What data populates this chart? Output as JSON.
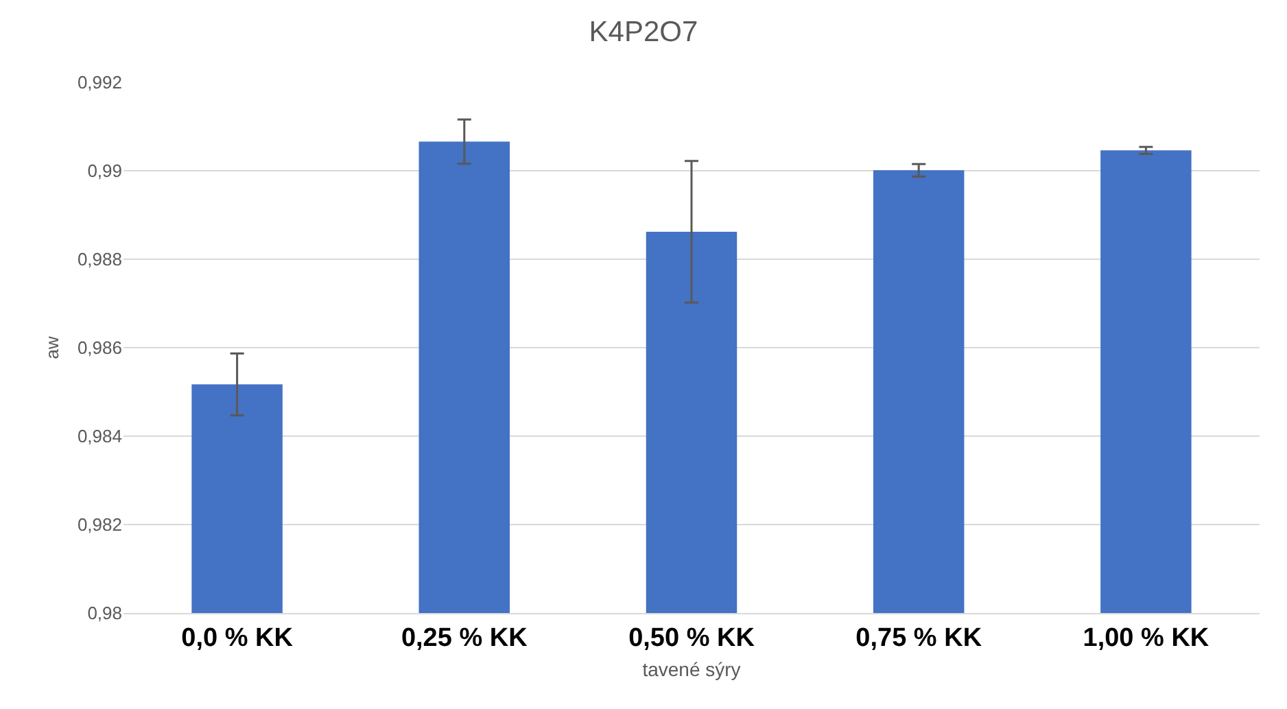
{
  "chart_data": {
    "type": "bar",
    "title": "K4P2O7",
    "xlabel": "tavené sýry",
    "ylabel": "aw",
    "categories": [
      "0,0 % KK",
      "0,25 % KK",
      "0,50 % KK",
      "0,75 % KK",
      "1,00 % KK"
    ],
    "values": [
      0.98517,
      0.99066,
      0.98862,
      0.99001,
      0.99046
    ],
    "errors": [
      0.0007,
      0.0005,
      0.0016,
      0.00014,
      8e-05
    ],
    "color": "#4472c4",
    "ylim": [
      0.98,
      0.992
    ],
    "yticks": [
      {
        "value": 0.98,
        "label": "0,98"
      },
      {
        "value": 0.982,
        "label": "0,982"
      },
      {
        "value": 0.984,
        "label": "0,984"
      },
      {
        "value": 0.986,
        "label": "0,986"
      },
      {
        "value": 0.988,
        "label": "0,988"
      },
      {
        "value": 0.99,
        "label": "0,99"
      },
      {
        "value": 0.992,
        "label": "0,992"
      }
    ],
    "grid": "y"
  }
}
